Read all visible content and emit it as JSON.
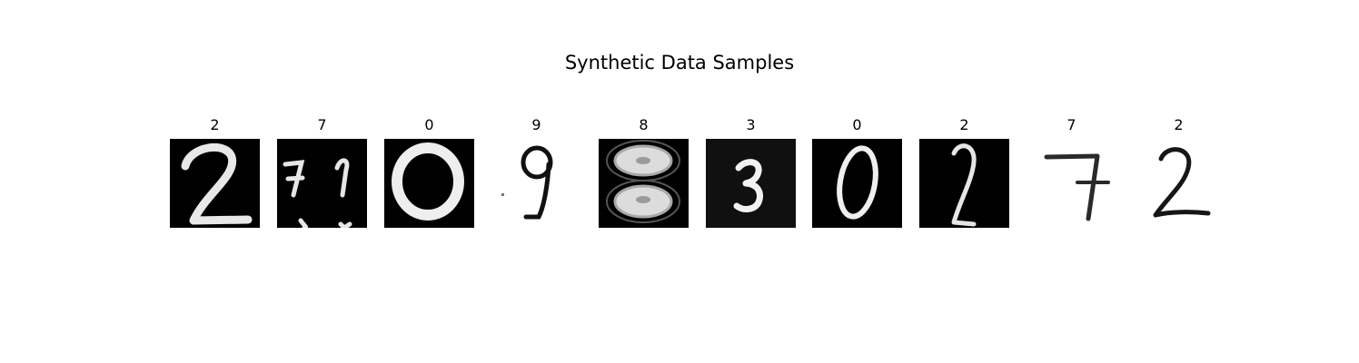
{
  "title": "Synthetic Data Samples",
  "samples": [
    {
      "label": "2",
      "digit": "2",
      "background": "dark"
    },
    {
      "label": "7",
      "digit": "7",
      "background": "dark"
    },
    {
      "label": "0",
      "digit": "0",
      "background": "dark"
    },
    {
      "label": "9",
      "digit": "9",
      "background": "light"
    },
    {
      "label": "8",
      "digit": "8",
      "background": "dark"
    },
    {
      "label": "3",
      "digit": "3",
      "background": "dark"
    },
    {
      "label": "0",
      "digit": "0",
      "background": "dark"
    },
    {
      "label": "2",
      "digit": "2",
      "background": "dark"
    },
    {
      "label": "7",
      "digit": "7",
      "background": "light"
    },
    {
      "label": "2",
      "digit": "2",
      "background": "light"
    }
  ]
}
